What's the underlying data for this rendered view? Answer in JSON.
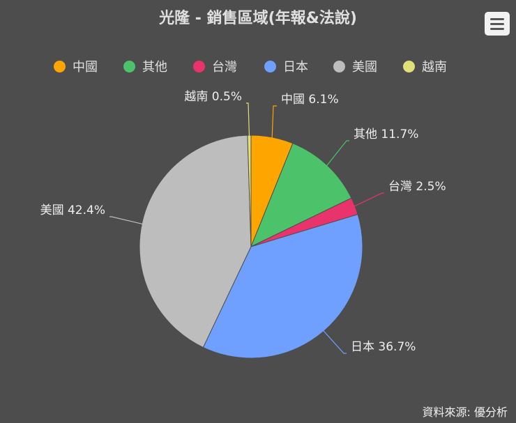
{
  "title": "光隆 - 銷售區域(年報&法說)",
  "credits": "資料來源: 優分析",
  "menu": {
    "icon": "hamburger-menu-icon"
  },
  "chart_data": {
    "type": "pie",
    "title": "光隆 - 銷售區域(年報&法說)",
    "legend_position": "top",
    "slices": [
      {
        "name": "中國",
        "value": 6.1,
        "label": "中國 6.1%",
        "color": "#ffa500"
      },
      {
        "name": "其他",
        "value": 11.7,
        "label": "其他 11.7%",
        "color": "#4cc26a"
      },
      {
        "name": "台灣",
        "value": 2.5,
        "label": "台灣 2.5%",
        "color": "#e8336d"
      },
      {
        "name": "日本",
        "value": 36.7,
        "label": "日本 36.7%",
        "color": "#6fa0ff"
      },
      {
        "name": "美國",
        "value": 42.4,
        "label": "美國 42.4%",
        "color": "#bdbdbd"
      },
      {
        "name": "越南",
        "value": 0.5,
        "label": "越南 0.5%",
        "color": "#e0e07a"
      }
    ]
  }
}
